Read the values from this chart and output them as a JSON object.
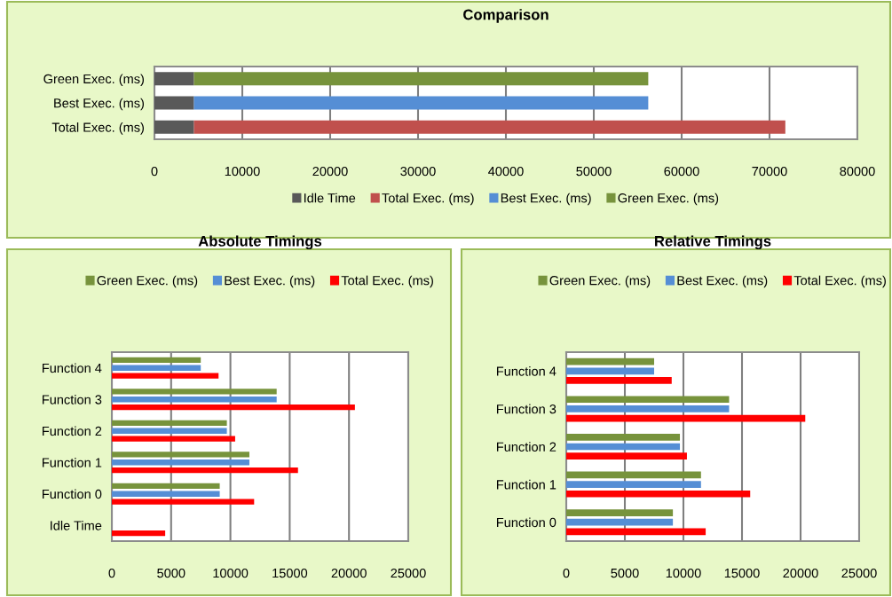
{
  "chart_data": [
    {
      "type": "bar",
      "orientation": "horizontal",
      "stacked": true,
      "title": "Comparison",
      "categories": [
        "Green Exec. (ms)",
        "Best Exec. (ms)",
        "Total Exec. (ms)"
      ],
      "series": [
        {
          "name": "Idle Time",
          "color": "#595959",
          "values": [
            4500,
            4500,
            4500
          ]
        },
        {
          "name": "Total Exec. (ms)",
          "color": "#c0504d",
          "values": [
            null,
            null,
            67300
          ]
        },
        {
          "name": "Best Exec. (ms)",
          "color": "#558ed5",
          "values": [
            null,
            51700,
            null
          ]
        },
        {
          "name": "Green Exec. (ms)",
          "color": "#77933c",
          "values": [
            51700,
            null,
            null
          ]
        }
      ],
      "xlim": [
        0,
        80000
      ],
      "xticks": [
        0,
        10000,
        20000,
        30000,
        40000,
        50000,
        60000,
        70000,
        80000
      ],
      "grid": "x",
      "legend": "bottom"
    },
    {
      "type": "bar",
      "orientation": "horizontal",
      "title": "Absolute Timings",
      "categories": [
        "Function 4",
        "Function 3",
        "Function 2",
        "Function 1",
        "Function 0",
        "Idle Time"
      ],
      "series": [
        {
          "name": "Green Exec. (ms)",
          "color": "#77933c",
          "values": [
            7500,
            13900,
            9700,
            11600,
            9100,
            null
          ]
        },
        {
          "name": "Best Exec. (ms)",
          "color": "#558ed5",
          "values": [
            7500,
            13900,
            9700,
            11600,
            9100,
            null
          ]
        },
        {
          "name": "Total Exec. (ms)",
          "color": "#ff0000",
          "values": [
            9000,
            20500,
            10400,
            15700,
            12000,
            4500
          ]
        }
      ],
      "xlim": [
        0,
        25000
      ],
      "xticks": [
        0,
        5000,
        10000,
        15000,
        20000,
        25000
      ],
      "grid": "x",
      "legend": "top"
    },
    {
      "type": "bar",
      "orientation": "horizontal",
      "title": "Relative Timings",
      "categories": [
        "Function 4",
        "Function 3",
        "Function 2",
        "Function 1",
        "Function 0"
      ],
      "series": [
        {
          "name": "Green Exec. (ms)",
          "color": "#77933c",
          "values": [
            7500,
            13900,
            9700,
            11500,
            9100
          ]
        },
        {
          "name": "Best Exec. (ms)",
          "color": "#558ed5",
          "values": [
            7500,
            13900,
            9700,
            11500,
            9100
          ]
        },
        {
          "name": "Total Exec. (ms)",
          "color": "#ff0000",
          "values": [
            9000,
            20400,
            10300,
            15700,
            11900
          ]
        }
      ],
      "xlim": [
        0,
        25000
      ],
      "xticks": [
        0,
        5000,
        10000,
        15000,
        20000,
        25000
      ],
      "grid": "x",
      "legend": "top"
    }
  ]
}
